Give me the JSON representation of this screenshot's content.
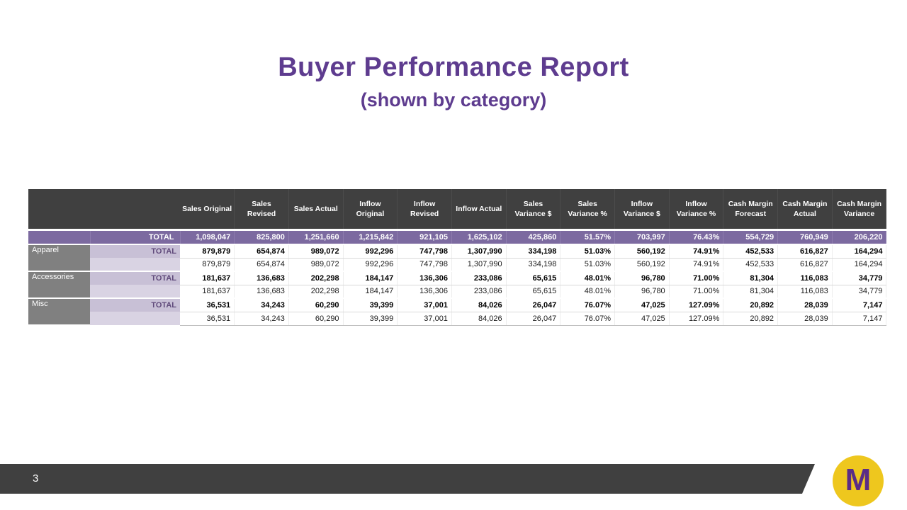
{
  "header": {
    "title": "Buyer Performance Report",
    "subtitle": "(shown by category)"
  },
  "table": {
    "columns": [
      "Sales Original",
      "Sales Revised",
      "Sales Actual",
      "Inflow Original",
      "Inflow Revised",
      "Inflow Actual",
      "Sales Variance $",
      "Sales Variance %",
      "Inflow Variance $",
      "Inflow Variance %",
      "Cash Margin Forecast",
      "Cash Margin Actual",
      "Cash Margin Variance"
    ],
    "grand_total": {
      "label": "TOTAL",
      "values": [
        "1,098,047",
        "825,800",
        "1,251,660",
        "1,215,842",
        "921,105",
        "1,625,102",
        "425,860",
        "51.57%",
        "703,997",
        "76.43%",
        "554,729",
        "760,949",
        "206,220"
      ]
    },
    "groups": [
      {
        "category": "Apparel",
        "total_label": "TOTAL",
        "total": [
          "879,879",
          "654,874",
          "989,072",
          "992,296",
          "747,798",
          "1,307,990",
          "334,198",
          "51.03%",
          "560,192",
          "74.91%",
          "452,533",
          "616,827",
          "164,294"
        ],
        "detail": [
          "879,879",
          "654,874",
          "989,072",
          "992,296",
          "747,798",
          "1,307,990",
          "334,198",
          "51.03%",
          "560,192",
          "74.91%",
          "452,533",
          "616,827",
          "164,294"
        ]
      },
      {
        "category": "Accessories",
        "total_label": "TOTAL",
        "total": [
          "181,637",
          "136,683",
          "202,298",
          "184,147",
          "136,306",
          "233,086",
          "65,615",
          "48.01%",
          "96,780",
          "71.00%",
          "81,304",
          "116,083",
          "34,779"
        ],
        "detail": [
          "181,637",
          "136,683",
          "202,298",
          "184,147",
          "136,306",
          "233,086",
          "65,615",
          "48.01%",
          "96,780",
          "71.00%",
          "81,304",
          "116,083",
          "34,779"
        ]
      },
      {
        "category": "Misc",
        "total_label": "TOTAL",
        "total": [
          "36,531",
          "34,243",
          "60,290",
          "39,399",
          "37,001",
          "84,026",
          "26,047",
          "76.07%",
          "47,025",
          "127.09%",
          "20,892",
          "28,039",
          "7,147"
        ],
        "detail": [
          "36,531",
          "34,243",
          "60,290",
          "39,399",
          "37,001",
          "84,026",
          "26,047",
          "76.07%",
          "47,025",
          "127.09%",
          "20,892",
          "28,039",
          "7,147"
        ]
      }
    ]
  },
  "footer": {
    "page_number": "3"
  },
  "logo": {
    "letter": "M"
  },
  "colors": {
    "title_purple": "#5e3c8f",
    "header_gray": "#404040",
    "grand_total_purple": "#7c6aa0",
    "category_gray": "#808080",
    "total_label_lavender": "#c8c0d6",
    "logo_yellow": "#eec71e",
    "logo_letter_purple": "#5b2d86"
  }
}
